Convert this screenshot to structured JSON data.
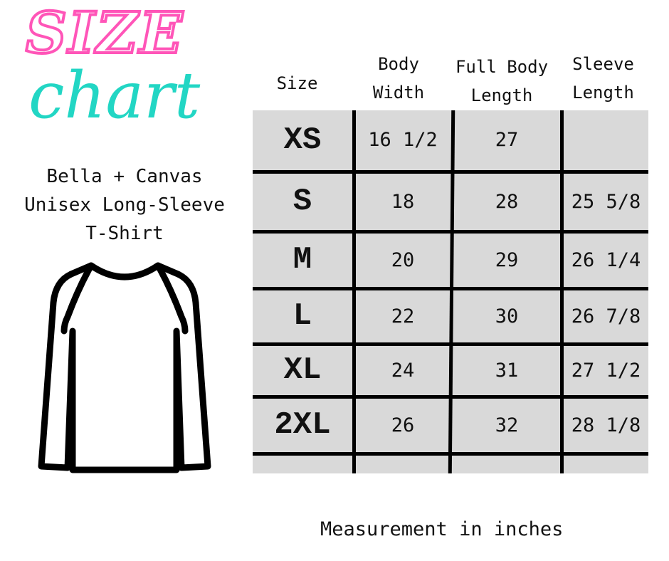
{
  "logo": {
    "line1": "SIZE",
    "line2": "chart",
    "colors": {
      "size": "#ff55b8",
      "chart": "#22d6c4"
    }
  },
  "product": {
    "brand": "Bella + Canvas",
    "name": "Unisex Long-Sleeve",
    "type": "T-Shirt",
    "icon": "long-sleeve-shirt-icon"
  },
  "table": {
    "headers": [
      [
        "Size"
      ],
      [
        "Body",
        "Width"
      ],
      [
        "Full Body",
        "Length"
      ],
      [
        "Sleeve",
        "Length"
      ]
    ],
    "rows": [
      [
        "XS",
        "16 1/2",
        "27",
        ""
      ],
      [
        "S",
        "18",
        "28",
        "25 5/8"
      ],
      [
        "M",
        "20",
        "29",
        "26 1/4"
      ],
      [
        "L",
        "22",
        "30",
        "26 7/8"
      ],
      [
        "XL",
        "24",
        "31",
        "27 1/2"
      ],
      [
        "2XL",
        "26",
        "32",
        "28 1/8"
      ]
    ],
    "background": "#d9d9d9"
  },
  "footer": "Measurement in inches"
}
